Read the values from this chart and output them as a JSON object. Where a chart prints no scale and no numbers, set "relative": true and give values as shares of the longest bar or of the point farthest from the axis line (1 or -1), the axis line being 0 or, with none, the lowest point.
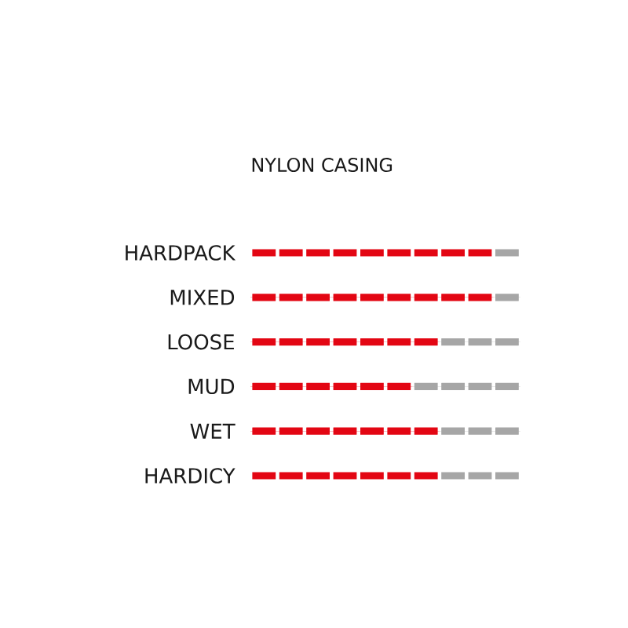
{
  "chart_data": {
    "type": "bar",
    "orientation": "horizontal",
    "stacked": true,
    "relative": true,
    "title": "NYLON CASING",
    "categories": [
      "HARDPACK",
      "MIXED",
      "LOOSE",
      "MUD",
      "WET",
      "HARDICY"
    ],
    "series": [
      {
        "color": "#e30613",
        "values": [
          0.9,
          0.9,
          0.7,
          0.6,
          0.7,
          0.7
        ]
      },
      {
        "color": "#a6a6a6",
        "values": [
          0.1,
          0.1,
          0.3,
          0.4,
          0.3,
          0.3
        ]
      }
    ]
  }
}
